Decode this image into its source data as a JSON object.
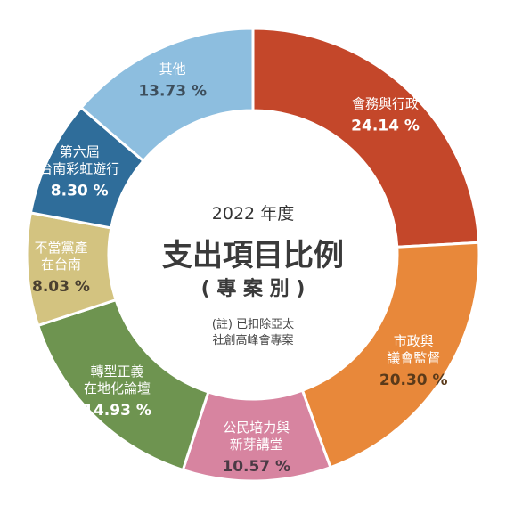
{
  "chart_data": {
    "type": "pie",
    "style": "donut",
    "title_year": "2022 年度",
    "title": "支出項目比例",
    "subtitle": "( 專 案 別 )",
    "note": [
      "(註) 已扣除亞太",
      "社創高峰會專案"
    ],
    "unit": "%",
    "slices": [
      {
        "label": [
          "會務與行政"
        ],
        "value": 24.14,
        "value_text": "24.14 %",
        "color": "#c4472a",
        "text_color": "#ffffff"
      },
      {
        "label": [
          "市政與",
          "議會監督"
        ],
        "value": 20.3,
        "value_text": "20.30 %",
        "color": "#e8883a",
        "text_color": "#5a3a1a"
      },
      {
        "label": [
          "公民培力與",
          "新芽講堂"
        ],
        "value": 10.57,
        "value_text": "10.57 %",
        "color": "#d784a0",
        "text_color": "#4a3a44"
      },
      {
        "label": [
          "轉型正義",
          "在地化論壇"
        ],
        "value": 14.93,
        "value_text": "14.93 %",
        "color": "#6e9450",
        "text_color": "#ffffff"
      },
      {
        "label": [
          "不當黨產",
          "在台南"
        ],
        "value": 8.03,
        "value_text": "8.03 %",
        "color": "#d3c380",
        "text_color": "#4a4030"
      },
      {
        "label": [
          "第六屆",
          "台南彩虹遊行"
        ],
        "value": 8.3,
        "value_text": "8.30 %",
        "color": "#2f6d9a",
        "text_color": "#ffffff"
      },
      {
        "label": [
          "其他"
        ],
        "value": 13.73,
        "value_text": "13.73 %",
        "color": "#8dbedf",
        "text_color": "#3d4e5c"
      }
    ]
  }
}
